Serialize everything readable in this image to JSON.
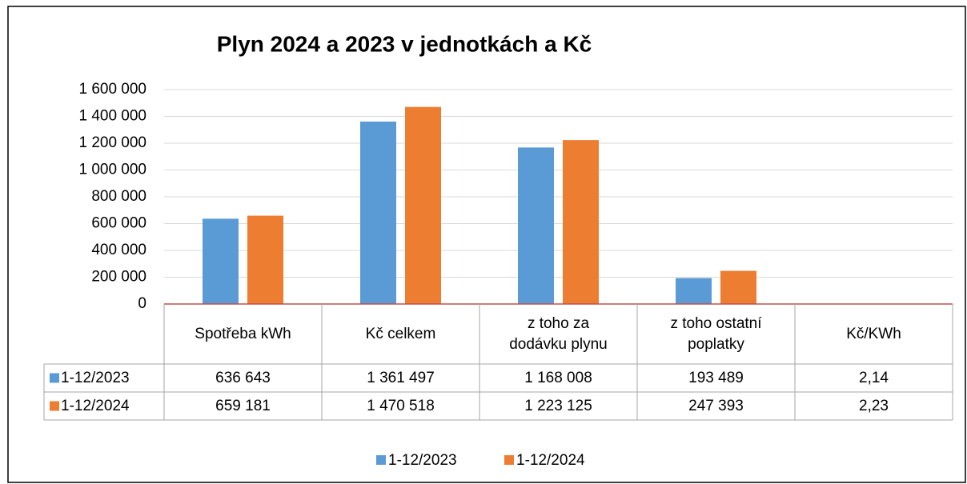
{
  "chart_data": {
    "type": "bar",
    "title": "Plyn 2024 a 2023 v jednotkách a Kč",
    "categories": [
      "Spotřeba kWh",
      "Kč celkem",
      "z toho za dodávku plynu",
      "z toho ostatní poplatky",
      "Kč/KWh"
    ],
    "series": [
      {
        "name": "1-12/2023",
        "color": "#5b9bd5",
        "values": [
          636643,
          1361497,
          1168008,
          193489,
          2.14
        ],
        "value_labels": [
          "636 643",
          "1 361 497",
          "1 168 008",
          "193 489",
          "2,14"
        ]
      },
      {
        "name": "1-12/2024",
        "color": "#ed7d31",
        "values": [
          659181,
          1470518,
          1223125,
          247393,
          2.23
        ],
        "value_labels": [
          "659 181",
          "1 470 518",
          "1 223 125",
          "247 393",
          "2,23"
        ]
      }
    ],
    "ylim": [
      0,
      1600000
    ],
    "yticks": [
      0,
      {
        "value": 200000,
        "label": "200 000"
      },
      {
        "value": 400000,
        "label": "400 000"
      },
      {
        "value": 600000,
        "label": "600 000"
      },
      {
        "value": 800000,
        "label": "800 000"
      },
      {
        "value": 1000000,
        "label": "1 000 000"
      },
      {
        "value": 1200000,
        "label": "1 200 000"
      },
      {
        "value": 1400000,
        "label": "1 400 000"
      },
      {
        "value": 1600000,
        "label": "1 600 000"
      }
    ],
    "grid": true,
    "legend": "bottom"
  }
}
